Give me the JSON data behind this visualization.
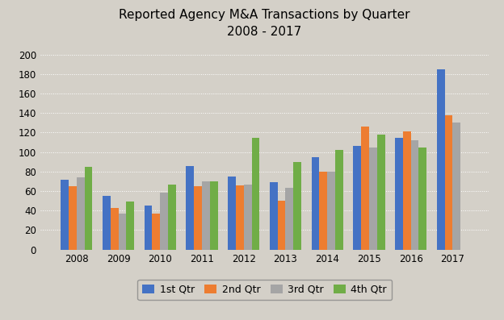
{
  "title_line1": "Reported Agency M&A Transactions by Quarter",
  "title_line2": "2008 - 2017",
  "years": [
    "2008",
    "2009",
    "2010",
    "2011",
    "2012",
    "2013",
    "2014",
    "2015",
    "2016",
    "2017"
  ],
  "quarters": {
    "1st Qtr": [
      72,
      55,
      45,
      86,
      75,
      69,
      95,
      106,
      115,
      185
    ],
    "2nd Qtr": [
      65,
      43,
      37,
      65,
      66,
      50,
      80,
      126,
      121,
      138
    ],
    "3rd Qtr": [
      74,
      37,
      58,
      70,
      67,
      63,
      80,
      105,
      112,
      130
    ],
    "4th Qtr": [
      85,
      49,
      67,
      70,
      115,
      90,
      102,
      118,
      105,
      0
    ]
  },
  "colors": {
    "1st Qtr": "#4472C4",
    "2nd Qtr": "#ED7D31",
    "3rd Qtr": "#A5A5A5",
    "4th Qtr": "#70AD47"
  },
  "ylim": [
    0,
    210
  ],
  "yticks": [
    0,
    20,
    40,
    60,
    80,
    100,
    120,
    140,
    160,
    180,
    200
  ],
  "background_color": "#D4D0C8",
  "plot_background_color": "#D4D0C8",
  "title_fontsize": 11,
  "legend_fontsize": 9,
  "tick_fontsize": 8.5,
  "bar_width": 0.19
}
